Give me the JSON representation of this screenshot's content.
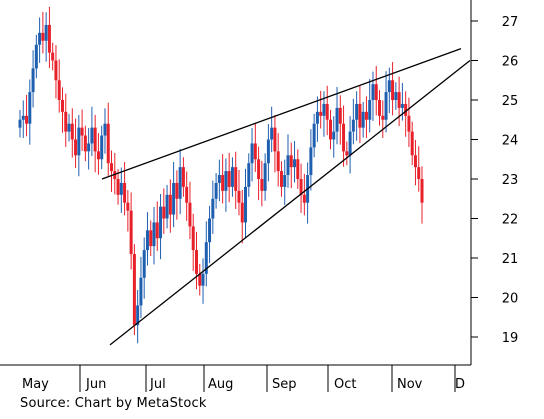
{
  "chart_data": {
    "type": "candlestick",
    "title": "",
    "xlabel": "",
    "ylabel": "",
    "x_ticks": [
      "May",
      "Jun",
      "Jul",
      "Aug",
      "Sep",
      "Oct",
      "Nov",
      "D"
    ],
    "y_ticks": [
      19,
      20,
      21,
      22,
      23,
      24,
      25,
      26,
      27
    ],
    "ylim": [
      18.4,
      27.3
    ],
    "grid": false,
    "y_axis_side": "right",
    "colors": {
      "up": "#1f5fb0",
      "down": "#e8202a",
      "lines": "#000000"
    },
    "series": [
      {
        "values": [
          24.5,
          24.6,
          24.4,
          25.2,
          25.8,
          26.4,
          26.7,
          26.5,
          26.9,
          26.2,
          26.0,
          25.5,
          25.0,
          24.7,
          24.2,
          24.4,
          24.0,
          23.6,
          24.3,
          24.1,
          23.7,
          23.9,
          24.3,
          23.7,
          23.5,
          24.1,
          24.4,
          23.4,
          23.2,
          23.0,
          22.6,
          22.9,
          22.4,
          22.2,
          21.1,
          19.3,
          19.8,
          20.5,
          21.2,
          21.7,
          21.3,
          21.9,
          21.5,
          22.3,
          22.0,
          22.6,
          22.1,
          22.9,
          22.5,
          23.3,
          22.8,
          22.4,
          21.8,
          21.2,
          20.6,
          20.3,
          20.6,
          21.4,
          22.0,
          22.5,
          22.9,
          23.1,
          22.7,
          23.2,
          22.8,
          23.3,
          22.7,
          22.4,
          21.9,
          22.8,
          23.4,
          23.9,
          23.5,
          23.0,
          22.7,
          23.4,
          24.0,
          24.3,
          23.7,
          23.2,
          22.8,
          23.1,
          23.6,
          23.3,
          23.5,
          23.0,
          22.6,
          22.4,
          23.1,
          23.8,
          24.4,
          24.7,
          24.6,
          24.9,
          24.5,
          24.0,
          24.2,
          24.8,
          24.4,
          23.7,
          23.6,
          24.2,
          24.5,
          24.9,
          24.3,
          24.7,
          24.5,
          25.0,
          25.4,
          25.0,
          24.6,
          24.5,
          25.2,
          25.5,
          25.0,
          25.2,
          24.8,
          24.9,
          24.6,
          24.2,
          23.6,
          23.3,
          23.0,
          22.4
        ]
      }
    ],
    "annotations": [
      {
        "type": "trendline",
        "label": "upper wedge line",
        "from": {
          "month": "Jun",
          "value": 23.0
        },
        "to": {
          "month": "D",
          "value": 26.3
        }
      },
      {
        "type": "trendline",
        "label": "lower wedge line",
        "from": {
          "month": "Jun",
          "value": 18.8
        },
        "to": {
          "month": "D",
          "value": 26.0
        }
      }
    ]
  },
  "source": "Source: Chart by MetaStock"
}
